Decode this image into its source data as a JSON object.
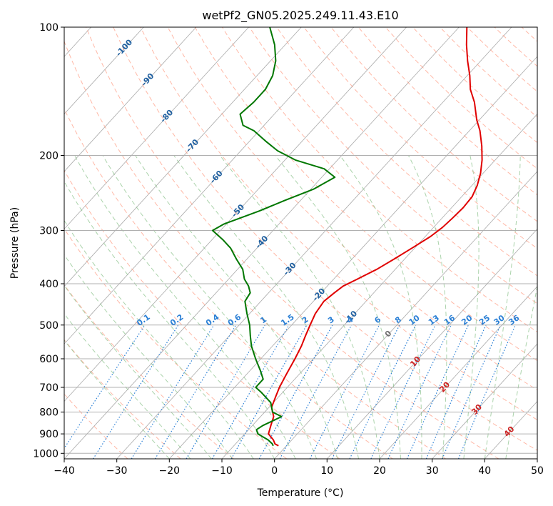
{
  "chart_data": {
    "type": "line",
    "subtype": "skew-t log-p diagram",
    "title": "wetPf2_GN05.2025.249.11.43.E10",
    "xlabel": "Temperature (°C)",
    "ylabel": "Pressure (hPa)",
    "xlim": [
      -40,
      50
    ],
    "ylim": [
      1030,
      100
    ],
    "y_scale": "log",
    "grid": true,
    "x_ticks": [
      -40,
      -30,
      -20,
      -10,
      0,
      10,
      20,
      30,
      40,
      50
    ],
    "x_tick_labels": [
      "−40",
      "−30",
      "−20",
      "−10",
      "0",
      "10",
      "20",
      "30",
      "40",
      "50"
    ],
    "y_ticks": [
      1000,
      900,
      800,
      700,
      600,
      500,
      400,
      300,
      200,
      100
    ],
    "y_tick_labels": [
      "1000",
      "900",
      "800",
      "700",
      "600",
      "500",
      "400",
      "300",
      "200",
      "100"
    ],
    "colors": {
      "temperature": "#e00000",
      "dewpoint": "#007700",
      "isotherm": "#aaaaaa",
      "dry_adiabat": "#ff9a80",
      "moist_adiabat": "#88c088",
      "mixing_ratio": "#2a7fd5",
      "isotherm_label": "#2060a0",
      "warm_isotherm_label": "#cc2222",
      "zero_isotherm_label": "#707070"
    },
    "isotherm_labels": [
      {
        "t": -100,
        "p": 112,
        "label": "-100"
      },
      {
        "t": -90,
        "p": 133,
        "label": "-90"
      },
      {
        "t": -80,
        "p": 162,
        "label": "-80"
      },
      {
        "t": -70,
        "p": 190,
        "label": "-70"
      },
      {
        "t": -60,
        "p": 225,
        "label": "-60"
      },
      {
        "t": -50,
        "p": 270,
        "label": "-50"
      },
      {
        "t": -40,
        "p": 320,
        "label": "-40"
      },
      {
        "t": -30,
        "p": 370,
        "label": "-30"
      },
      {
        "t": -20,
        "p": 425,
        "label": "-20"
      },
      {
        "t": -10,
        "p": 480,
        "label": "-10"
      },
      {
        "t": 0,
        "p": 525,
        "label": "0"
      },
      {
        "t": 10,
        "p": 610,
        "label": "10"
      },
      {
        "t": 20,
        "p": 700,
        "label": "20"
      },
      {
        "t": 30,
        "p": 790,
        "label": "30"
      },
      {
        "t": 40,
        "p": 890,
        "label": "40"
      }
    ],
    "mixing_ratio_labels": [
      "0.1",
      "0.2",
      "0.4",
      "0.6",
      "1",
      "1.5",
      "2",
      "3",
      "4",
      "6",
      "8",
      "10",
      "13",
      "16",
      "20",
      "25",
      "30",
      "36"
    ],
    "mixing_ratio_values": [
      0.1,
      0.2,
      0.4,
      0.6,
      1,
      1.5,
      2,
      3,
      4,
      6,
      8,
      10,
      13,
      16,
      20,
      25,
      30,
      36
    ],
    "series": [
      {
        "name": "",
        "kind": "temperature",
        "p": [
          960,
          950,
          930,
          900,
          860,
          820,
          780,
          740,
          700,
          650,
          600,
          560,
          530,
          500,
          470,
          440,
          420,
          405,
          390,
          370,
          350,
          330,
          310,
          295,
          280,
          265,
          250,
          235,
          220,
          205,
          190,
          175,
          165,
          150,
          140,
          130,
          120,
          110,
          100
        ],
        "t": [
          -1.5,
          -2.5,
          -3.5,
          -5.5,
          -6.5,
          -7.5,
          -9.5,
          -10.5,
          -11.5,
          -12.5,
          -13.5,
          -14.5,
          -15.5,
          -16.5,
          -17.5,
          -18,
          -17.5,
          -17,
          -15.5,
          -13.5,
          -12,
          -10.5,
          -9,
          -8.3,
          -8,
          -7.8,
          -8,
          -9,
          -10.5,
          -12.5,
          -15,
          -18,
          -20.5,
          -24,
          -27,
          -29.5,
          -32.5,
          -35.5,
          -38.5
        ]
      },
      {
        "name": "",
        "kind": "dewpoint",
        "p": [
          960,
          950,
          930,
          900,
          880,
          860,
          840,
          820,
          800,
          760,
          720,
          700,
          670,
          640,
          600,
          560,
          530,
          500,
          470,
          440,
          420,
          405,
          390,
          370,
          350,
          330,
          315,
          300,
          290,
          270,
          255,
          240,
          225,
          215,
          205,
          195,
          185,
          175,
          170,
          160,
          150,
          140,
          130,
          120,
          110,
          100
        ],
        "t": [
          -2.5,
          -3,
          -4.5,
          -7.5,
          -8.5,
          -8,
          -7,
          -6,
          -8.5,
          -10.5,
          -14,
          -16,
          -16,
          -18,
          -21,
          -24,
          -26,
          -28,
          -30.5,
          -33,
          -33.5,
          -35,
          -37,
          -39,
          -42,
          -45,
          -48,
          -51.5,
          -50.5,
          -46,
          -43,
          -39.5,
          -37.5,
          -41,
          -48,
          -53,
          -57,
          -61,
          -64,
          -66.5,
          -66,
          -66,
          -67,
          -69,
          -72,
          -76
        ]
      }
    ]
  }
}
